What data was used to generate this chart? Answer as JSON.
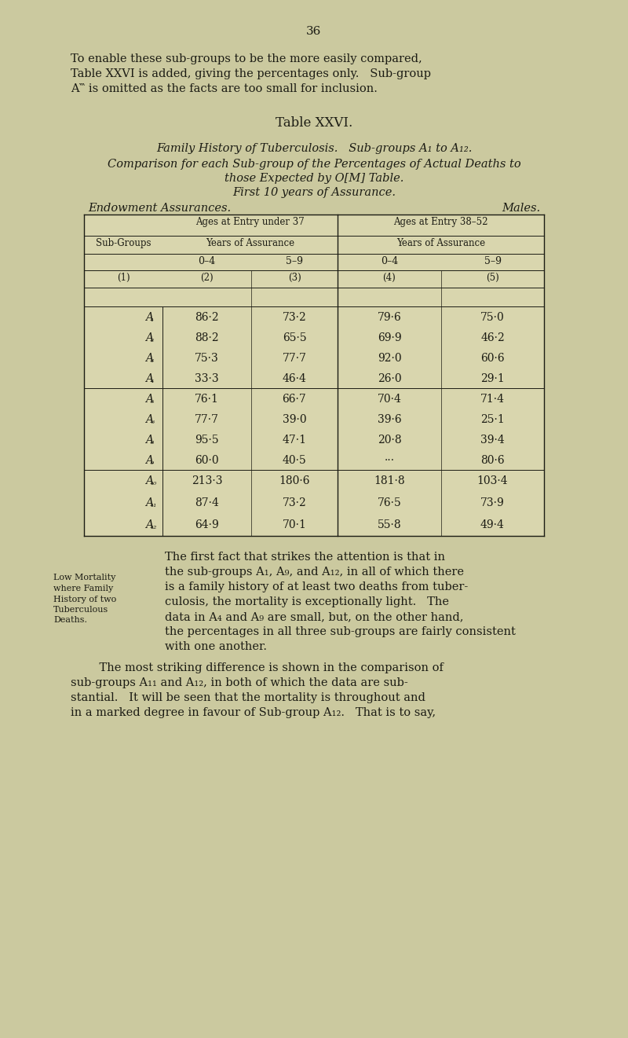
{
  "bg_color": "#cbc99f",
  "page_num": "36",
  "intro_lines": [
    "To enable these sub-groups to be the more easily compared,",
    "Table XXVI is added, giving the percentages only.   Sub-group",
    "A‷ is omitted as the facts are too small for inclusion."
  ],
  "table_title": "Table XXVI.",
  "sub1": "Family History of Tuberculosis.   Sub-groups A₁ to A₁₂.",
  "sub2": "Comparison for each Sub-group of the Percentages of Actual Deaths to",
  "sub3_pre": "those Expected by O",
  "sub3_sup": "[M]",
  "sub3_post": " Table.",
  "sub4": "First 10 years of Assurance.",
  "header_left": "Endowment Assurances.",
  "header_right": "Males.",
  "age1": "Ages at Entry under 37",
  "age2": "Ages at Entry 38–52",
  "years": "Years of Assurance",
  "col04_59": [
    "0–4",
    "5–9",
    "0–4",
    "5–9"
  ],
  "col_nums": [
    "(1)",
    "(2)",
    "(3)",
    "(4)",
    "(5)"
  ],
  "g1_labels": [
    "A₁",
    "A₂",
    "A₃",
    "A₄"
  ],
  "g1_data": [
    [
      "86·2",
      "73·2",
      "79·6",
      "75·0"
    ],
    [
      "88·2",
      "65·5",
      "69·9",
      "46·2"
    ],
    [
      "75·3",
      "77·7",
      "92·0",
      "60·6"
    ],
    [
      "33·3",
      "46·4",
      "26·0",
      "29·1"
    ]
  ],
  "g2_labels": [
    "A₅",
    "A₆",
    "A₈",
    "A₉"
  ],
  "g2_data": [
    [
      "76·1",
      "66·7",
      "70·4",
      "71·4"
    ],
    [
      "77·7",
      "39·0",
      "39·6",
      "25·1"
    ],
    [
      "95·5",
      "47·1",
      "20·8",
      "39·4"
    ],
    [
      "60·0",
      "40·5",
      "···",
      "80·6"
    ]
  ],
  "g3_labels": [
    "A₁₀",
    "A₁₁",
    "A₁₂"
  ],
  "g3_data": [
    [
      "213·3",
      "180·6",
      "181·8",
      "103·4"
    ],
    [
      "87·4",
      "73·2",
      "76·5",
      "73·9"
    ],
    [
      "64·9",
      "70·1",
      "55·8",
      "49·4"
    ]
  ],
  "para1_lines": [
    "The first fact that strikes the attention is that in",
    "the sub-groups A₁, A₉, and A₁₂, in all of which there",
    "is a family history of at least two deaths from tuber-",
    "culosis, the mortality is exceptionally light.   The",
    "data in A₄ and A₉ are small, but, on the other hand,",
    "the percentages in all three sub-groups are fairly consistent",
    "with one another."
  ],
  "margin_lines": [
    "Low Mortality",
    "where Family",
    "History of two",
    "Tuberculous",
    "Deaths."
  ],
  "para2_lines": [
    "The most striking difference is shown in the comparison of",
    "sub-groups A₁₁ and A₁₂, in both of which the data are sub-",
    "stantial.   It will be seen that the mortality is throughout and",
    "in a marked degree in favour of Sub-group A₁₂.   That is to say,"
  ],
  "tc": "#1c1c14",
  "table_bg": "#d9d6ae",
  "tl": 107,
  "tr": 693,
  "col_edges": [
    107,
    207,
    320,
    430,
    562,
    693
  ]
}
